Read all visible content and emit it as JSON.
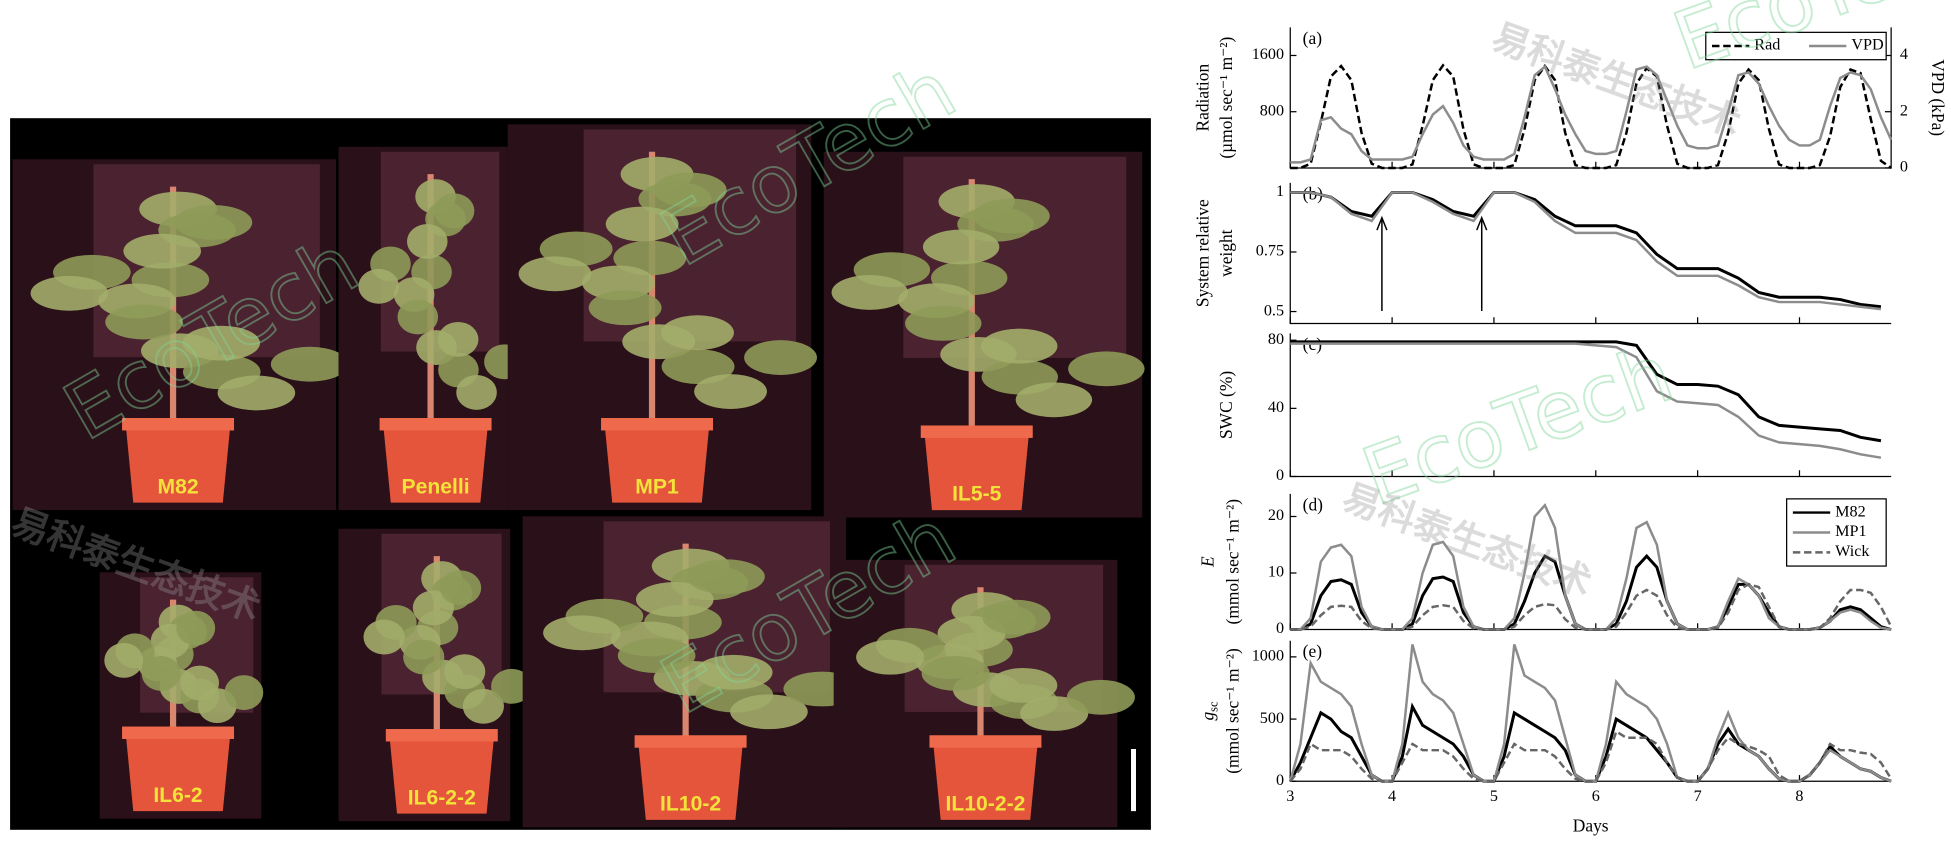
{
  "photos": {
    "labels": [
      "M82",
      "Penelli",
      "MP1",
      "IL5-5",
      "IL6-2",
      "IL6-2-2",
      "IL10-2",
      "IL10-2-2"
    ]
  },
  "watermarks": [
    "EcoTech",
    "易科泰生态技术"
  ],
  "chart_data": [
    {
      "type": "line",
      "panel": "(a)",
      "ylabel": [
        "Radiation",
        "(µmol sec⁻¹ m⁻²)"
      ],
      "y2label": "VPD (kPa)",
      "xlim": [
        3,
        8.9
      ],
      "ylim": [
        0,
        2000
      ],
      "yticks": [
        800,
        1600
      ],
      "y2lim": [
        0,
        5
      ],
      "y2ticks": [
        0,
        2,
        4
      ],
      "legend": "upper right",
      "x": [
        3,
        3.1,
        3.2,
        3.3,
        3.4,
        3.5,
        3.6,
        3.7,
        3.8,
        3.9,
        4,
        4.1,
        4.2,
        4.3,
        4.4,
        4.5,
        4.6,
        4.7,
        4.8,
        4.9,
        5,
        5.1,
        5.2,
        5.3,
        5.4,
        5.5,
        5.6,
        5.7,
        5.8,
        5.9,
        6,
        6.1,
        6.2,
        6.3,
        6.4,
        6.5,
        6.6,
        6.7,
        6.8,
        6.9,
        7,
        7.1,
        7.2,
        7.3,
        7.4,
        7.5,
        7.6,
        7.7,
        7.8,
        7.9,
        8,
        8.1,
        8.2,
        8.3,
        8.4,
        8.5,
        8.6,
        8.7,
        8.8,
        8.9
      ],
      "series": [
        {
          "name": "Rad",
          "color": "#000000",
          "dash": true,
          "values": [
            0,
            0,
            60,
            650,
            1300,
            1450,
            1250,
            500,
            60,
            0,
            0,
            0,
            50,
            600,
            1250,
            1460,
            1300,
            550,
            50,
            0,
            0,
            0,
            40,
            550,
            1250,
            1450,
            1250,
            500,
            40,
            0,
            0,
            0,
            40,
            500,
            1200,
            1420,
            1300,
            600,
            60,
            0,
            0,
            0,
            40,
            500,
            1200,
            1400,
            1250,
            550,
            50,
            0,
            0,
            0,
            40,
            450,
            1150,
            1400,
            1350,
            700,
            100,
            0
          ]
        },
        {
          "name": "VPD",
          "color": "#8c8c8c",
          "axis": "y2",
          "values": [
            0.2,
            0.2,
            0.3,
            1.7,
            1.8,
            1.4,
            1.2,
            0.6,
            0.3,
            0.3,
            0.3,
            0.3,
            0.4,
            1.2,
            1.9,
            2.2,
            1.6,
            0.8,
            0.4,
            0.3,
            0.3,
            0.3,
            0.5,
            1.8,
            3.3,
            3.6,
            2.8,
            1.9,
            1.2,
            0.6,
            0.5,
            0.5,
            0.6,
            2.0,
            3.5,
            3.6,
            3.3,
            2.4,
            1.5,
            0.8,
            0.7,
            0.7,
            0.8,
            2.0,
            3.3,
            3.4,
            3.0,
            2.2,
            1.5,
            1.0,
            0.8,
            0.8,
            1.0,
            2.2,
            3.2,
            3.4,
            3.3,
            2.8,
            1.8,
            1.0
          ]
        }
      ]
    },
    {
      "type": "line",
      "panel": "(b)",
      "ylabel": [
        "System relative",
        "weight"
      ],
      "xlim": [
        3,
        8.9
      ],
      "ylim": [
        0.45,
        1.04
      ],
      "yticks": [
        0.5,
        0.75,
        1
      ],
      "arrows_x": [
        3.9,
        4.88
      ],
      "x": [
        3,
        3.2,
        3.4,
        3.6,
        3.8,
        4,
        4.2,
        4.4,
        4.6,
        4.8,
        5,
        5.2,
        5.4,
        5.6,
        5.8,
        6,
        6.2,
        6.4,
        6.6,
        6.8,
        7,
        7.2,
        7.4,
        7.6,
        7.8,
        8,
        8.2,
        8.4,
        8.6,
        8.8
      ],
      "series": [
        {
          "color": "#000000",
          "values": [
            1,
            1,
            0.98,
            0.92,
            0.9,
            1,
            1,
            0.97,
            0.92,
            0.9,
            1,
            1,
            0.97,
            0.9,
            0.86,
            0.86,
            0.86,
            0.83,
            0.74,
            0.68,
            0.68,
            0.68,
            0.64,
            0.58,
            0.56,
            0.56,
            0.56,
            0.55,
            0.53,
            0.52
          ]
        },
        {
          "color": "#8c8c8c",
          "values": [
            1,
            1,
            0.98,
            0.91,
            0.88,
            1,
            1,
            0.96,
            0.91,
            0.88,
            1,
            1,
            0.96,
            0.88,
            0.83,
            0.83,
            0.83,
            0.8,
            0.71,
            0.65,
            0.65,
            0.65,
            0.61,
            0.56,
            0.54,
            0.54,
            0.54,
            0.53,
            0.52,
            0.51
          ]
        }
      ]
    },
    {
      "type": "line",
      "panel": "(c)",
      "ylabel": [
        "SWC (%)"
      ],
      "xlim": [
        3,
        8.9
      ],
      "ylim": [
        0,
        84
      ],
      "yticks": [
        0,
        40,
        80
      ],
      "x": [
        3,
        3.2,
        3.4,
        3.6,
        3.8,
        4,
        4.2,
        4.4,
        4.6,
        4.8,
        5,
        5.2,
        5.4,
        5.6,
        5.8,
        6,
        6.2,
        6.4,
        6.6,
        6.8,
        7,
        7.2,
        7.4,
        7.6,
        7.8,
        8,
        8.2,
        8.4,
        8.6,
        8.8
      ],
      "series": [
        {
          "color": "#000000",
          "values": [
            79,
            79,
            79,
            79,
            79,
            79,
            79,
            79,
            79,
            79,
            79,
            79,
            79,
            79,
            79,
            79,
            79,
            77,
            60,
            54,
            54,
            53,
            48,
            35,
            30,
            29,
            28,
            27,
            23,
            21
          ]
        },
        {
          "color": "#8c8c8c",
          "values": [
            78,
            78,
            78,
            78,
            78,
            78,
            78,
            78,
            78,
            78,
            78,
            78,
            78,
            78,
            78,
            77,
            76,
            70,
            50,
            44,
            43,
            42,
            35,
            24,
            20,
            19,
            18,
            16,
            13,
            11
          ]
        }
      ]
    },
    {
      "type": "line",
      "panel": "(d)",
      "ylabel": [
        "E",
        "(mmol sec⁻¹ m⁻²)"
      ],
      "xlim": [
        3,
        8.9
      ],
      "ylim": [
        0,
        24
      ],
      "yticks": [
        0,
        10,
        20
      ],
      "legend": "upper right",
      "x": [
        3,
        3.1,
        3.2,
        3.3,
        3.4,
        3.5,
        3.6,
        3.7,
        3.8,
        3.9,
        4,
        4.1,
        4.2,
        4.3,
        4.4,
        4.5,
        4.6,
        4.7,
        4.8,
        4.9,
        5,
        5.1,
        5.2,
        5.3,
        5.4,
        5.5,
        5.6,
        5.7,
        5.8,
        5.9,
        6,
        6.1,
        6.2,
        6.3,
        6.4,
        6.5,
        6.6,
        6.7,
        6.8,
        6.9,
        7,
        7.1,
        7.2,
        7.3,
        7.4,
        7.5,
        7.6,
        7.7,
        7.8,
        7.9,
        8,
        8.1,
        8.2,
        8.3,
        8.4,
        8.5,
        8.6,
        8.7,
        8.8,
        8.9
      ],
      "series": [
        {
          "name": "M82",
          "color": "#000000",
          "values": [
            0,
            0,
            1,
            6,
            8.5,
            8.8,
            8,
            3,
            0.5,
            0,
            0,
            0,
            1,
            6,
            9,
            9.3,
            8.5,
            3,
            0.5,
            0,
            0,
            0,
            1,
            5,
            10,
            13,
            12,
            6,
            1,
            0,
            0,
            0,
            1,
            5,
            11,
            13,
            11,
            5,
            1,
            0,
            0,
            0,
            0.5,
            4,
            8,
            8,
            6,
            3,
            0.5,
            0,
            0,
            0,
            0.3,
            1.5,
            3.5,
            4,
            3.5,
            2,
            0.5,
            0
          ]
        },
        {
          "name": "MP1",
          "color": "#8c8c8c",
          "values": [
            0,
            0,
            2,
            12,
            14.5,
            15,
            13,
            4,
            0.5,
            0,
            0,
            0,
            2,
            10,
            15,
            15.5,
            13,
            4,
            0.5,
            0,
            0,
            0,
            2,
            10,
            20,
            22,
            18,
            6,
            1,
            0,
            0,
            0,
            2,
            9,
            18,
            19,
            15,
            5,
            1,
            0,
            0,
            0,
            0.5,
            5,
            9,
            8,
            6,
            2,
            0.5,
            0,
            0,
            0,
            0.3,
            1.5,
            3,
            3.5,
            3,
            1.5,
            0.3,
            0
          ]
        },
        {
          "name": "Wick",
          "color": "#666666",
          "dash": true,
          "values": [
            0,
            0,
            0.5,
            2.5,
            4,
            4.2,
            4,
            1.5,
            0.2,
            0,
            0,
            0,
            0.5,
            2.5,
            4,
            4.3,
            4,
            1.5,
            0.2,
            0,
            0,
            0,
            0.5,
            2.5,
            4,
            4.5,
            4.3,
            1.8,
            0.3,
            0,
            0,
            0,
            0.5,
            3,
            6,
            7,
            6,
            2.5,
            0.3,
            0,
            0,
            0,
            0.3,
            3,
            7,
            8,
            7.5,
            4,
            0.5,
            0,
            0,
            0,
            0.3,
            2,
            5,
            7,
            7,
            6.5,
            4,
            0.5
          ]
        }
      ]
    },
    {
      "type": "line",
      "panel": "(e)",
      "ylabel": [
        {
          "main": "g",
          "sub": "sc"
        },
        "(mmol sec⁻¹ m⁻²)"
      ],
      "xlabel": "Days",
      "xlim": [
        3,
        8.9
      ],
      "ylim": [
        0,
        1130
      ],
      "yticks": [
        0,
        500,
        1000
      ],
      "xticks": [
        3,
        4,
        5,
        6,
        7,
        8
      ],
      "x": [
        3,
        3.1,
        3.2,
        3.3,
        3.4,
        3.5,
        3.6,
        3.7,
        3.8,
        3.9,
        4,
        4.1,
        4.2,
        4.3,
        4.4,
        4.5,
        4.6,
        4.7,
        4.8,
        4.9,
        5,
        5.1,
        5.2,
        5.3,
        5.4,
        5.5,
        5.6,
        5.7,
        5.8,
        5.9,
        6,
        6.1,
        6.2,
        6.3,
        6.4,
        6.5,
        6.6,
        6.7,
        6.8,
        6.9,
        7,
        7.1,
        7.2,
        7.3,
        7.4,
        7.5,
        7.6,
        7.7,
        7.8,
        7.9,
        8,
        8.1,
        8.2,
        8.3,
        8.4,
        8.5,
        8.6,
        8.7,
        8.8,
        8.9
      ],
      "series": [
        {
          "color": "#000000",
          "values": [
            0,
            150,
            350,
            550,
            500,
            400,
            350,
            200,
            50,
            0,
            0,
            200,
            600,
            450,
            400,
            350,
            300,
            200,
            50,
            0,
            0,
            200,
            550,
            500,
            450,
            400,
            350,
            250,
            50,
            0,
            0,
            200,
            500,
            450,
            400,
            350,
            250,
            150,
            30,
            0,
            0,
            100,
            300,
            420,
            300,
            250,
            200,
            100,
            20,
            0,
            0,
            50,
            150,
            280,
            200,
            150,
            100,
            80,
            30,
            0
          ]
        },
        {
          "color": "#8c8c8c",
          "values": [
            0,
            300,
            950,
            800,
            750,
            700,
            600,
            300,
            50,
            0,
            0,
            300,
            1100,
            800,
            700,
            650,
            550,
            300,
            50,
            0,
            0,
            300,
            1100,
            850,
            800,
            750,
            650,
            350,
            50,
            0,
            0,
            300,
            800,
            700,
            650,
            600,
            500,
            300,
            30,
            0,
            0,
            100,
            350,
            550,
            350,
            250,
            200,
            100,
            20,
            0,
            0,
            50,
            150,
            250,
            200,
            150,
            100,
            80,
            30,
            0
          ]
        },
        {
          "color": "#666666",
          "dash": true,
          "values": [
            0,
            100,
            300,
            250,
            250,
            250,
            200,
            100,
            20,
            0,
            0,
            150,
            300,
            250,
            250,
            250,
            200,
            100,
            20,
            0,
            0,
            150,
            300,
            250,
            250,
            250,
            200,
            100,
            20,
            0,
            0,
            150,
            400,
            350,
            350,
            350,
            300,
            150,
            30,
            0,
            0,
            100,
            250,
            350,
            300,
            280,
            250,
            200,
            50,
            0,
            0,
            50,
            150,
            300,
            250,
            250,
            230,
            220,
            150,
            20
          ]
        }
      ]
    }
  ]
}
